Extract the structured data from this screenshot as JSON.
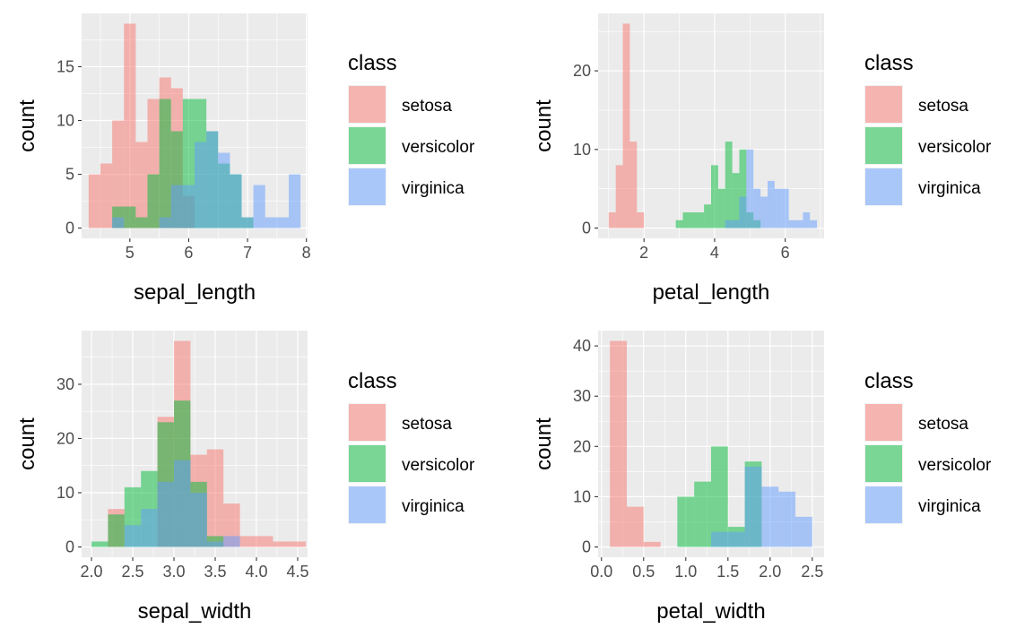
{
  "chart_data": [
    {
      "type": "histogram",
      "stacking": "overlay",
      "xlabel": "sepal_length",
      "ylabel": "count",
      "xlim": [
        4.18,
        8.02
      ],
      "ylim": [
        -0.95,
        19.95
      ],
      "x_ticks": [
        5,
        6,
        7,
        8
      ],
      "y_ticks": [
        0,
        5,
        10,
        15
      ],
      "legend_title": "class",
      "legend_position": "right",
      "grid": true,
      "series": [
        {
          "name": "setosa",
          "color": "#F8766D",
          "bins": [
            [
              4.3,
              4.5,
              5
            ],
            [
              4.5,
              4.7,
              6
            ],
            [
              4.7,
              4.9,
              10
            ],
            [
              4.9,
              5.1,
              19
            ],
            [
              5.1,
              5.3,
              8
            ],
            [
              5.3,
              5.5,
              12
            ],
            [
              5.5,
              5.7,
              14
            ],
            [
              5.7,
              5.9,
              13
            ],
            [
              5.9,
              6.1,
              3
            ]
          ]
        },
        {
          "name": "versicolor",
          "color": "#00BA38",
          "bins": [
            [
              4.7,
              4.9,
              2
            ],
            [
              4.9,
              5.1,
              2
            ],
            [
              5.1,
              5.3,
              1
            ],
            [
              5.3,
              5.5,
              5
            ],
            [
              5.5,
              5.7,
              12
            ],
            [
              5.7,
              5.9,
              9
            ],
            [
              5.9,
              6.1,
              12
            ],
            [
              6.1,
              6.3,
              12
            ],
            [
              6.3,
              6.5,
              9
            ],
            [
              6.5,
              6.7,
              6
            ],
            [
              6.7,
              6.9,
              5
            ],
            [
              6.9,
              7.1,
              1
            ]
          ]
        },
        {
          "name": "virginica",
          "color": "#619CFF",
          "bins": [
            [
              4.7,
              4.9,
              1
            ],
            [
              4.9,
              5.1,
              0
            ],
            [
              5.1,
              5.3,
              0
            ],
            [
              5.3,
              5.5,
              0
            ],
            [
              5.5,
              5.7,
              1
            ],
            [
              5.7,
              5.9,
              4
            ],
            [
              5.9,
              6.1,
              4
            ],
            [
              6.1,
              6.3,
              8
            ],
            [
              6.3,
              6.5,
              9
            ],
            [
              6.5,
              6.7,
              7
            ],
            [
              6.7,
              6.9,
              5
            ],
            [
              6.9,
              7.1,
              1
            ],
            [
              7.1,
              7.3,
              4
            ],
            [
              7.3,
              7.5,
              1
            ],
            [
              7.5,
              7.7,
              1
            ],
            [
              7.7,
              7.9,
              5
            ]
          ]
        }
      ]
    },
    {
      "type": "histogram",
      "stacking": "overlay",
      "xlabel": "petal_length",
      "ylabel": "count",
      "xlim": [
        0.7,
        7.1
      ],
      "ylim": [
        -1.3,
        27.3
      ],
      "x_ticks": [
        2,
        4,
        6
      ],
      "y_ticks": [
        0,
        10,
        20
      ],
      "legend_title": "class",
      "legend_position": "right",
      "grid": true,
      "series": [
        {
          "name": "setosa",
          "color": "#F8766D",
          "bins": [
            [
              1.0,
              1.2,
              2
            ],
            [
              1.2,
              1.4,
              8
            ],
            [
              1.4,
              1.6,
              26
            ],
            [
              1.6,
              1.8,
              11
            ],
            [
              1.8,
              2.0,
              2
            ]
          ]
        },
        {
          "name": "versicolor",
          "color": "#00BA38",
          "bins": [
            [
              2.9,
              3.1,
              1
            ],
            [
              3.1,
              3.3,
              2
            ],
            [
              3.3,
              3.5,
              2
            ],
            [
              3.5,
              3.7,
              2
            ],
            [
              3.7,
              3.9,
              3
            ],
            [
              3.9,
              4.1,
              8
            ],
            [
              4.1,
              4.3,
              5
            ],
            [
              4.3,
              4.5,
              11
            ],
            [
              4.5,
              4.7,
              7
            ],
            [
              4.7,
              4.9,
              10
            ],
            [
              4.9,
              5.1,
              2
            ],
            [
              5.1,
              5.3,
              1
            ]
          ]
        },
        {
          "name": "virginica",
          "color": "#619CFF",
          "bins": [
            [
              4.3,
              4.5,
              1
            ],
            [
              4.5,
              4.7,
              1
            ],
            [
              4.7,
              4.9,
              4
            ],
            [
              4.9,
              5.1,
              10
            ],
            [
              5.1,
              5.3,
              5
            ],
            [
              5.3,
              5.5,
              4
            ],
            [
              5.5,
              5.7,
              6
            ],
            [
              5.7,
              5.9,
              5
            ],
            [
              5.9,
              6.1,
              5
            ],
            [
              6.1,
              6.3,
              1
            ],
            [
              6.3,
              6.5,
              1
            ],
            [
              6.5,
              6.7,
              2
            ],
            [
              6.7,
              6.9,
              1
            ]
          ]
        }
      ]
    },
    {
      "type": "histogram",
      "stacking": "overlay",
      "xlabel": "sepal_width",
      "ylabel": "count",
      "xlim": [
        1.88,
        4.62
      ],
      "ylim": [
        -1.9,
        39.9
      ],
      "x_ticks": [
        "2.0",
        "2.5",
        "3.0",
        "3.5",
        "4.0",
        "4.5"
      ],
      "y_ticks": [
        0,
        10,
        20,
        30
      ],
      "legend_title": "class",
      "legend_position": "right",
      "grid": true,
      "series": [
        {
          "name": "setosa",
          "color": "#F8766D",
          "bins": [
            [
              2.2,
              2.4,
              7
            ],
            [
              2.8,
              3.0,
              24
            ],
            [
              3.0,
              3.2,
              38
            ],
            [
              3.2,
              3.4,
              17
            ],
            [
              3.4,
              3.6,
              18
            ],
            [
              3.6,
              3.8,
              8
            ],
            [
              3.8,
              4.0,
              2
            ],
            [
              4.0,
              4.2,
              2
            ],
            [
              4.2,
              4.4,
              1
            ],
            [
              4.4,
              4.6,
              1
            ]
          ]
        },
        {
          "name": "versicolor",
          "color": "#00BA38",
          "bins": [
            [
              2.0,
              2.2,
              1
            ],
            [
              2.2,
              2.4,
              6
            ],
            [
              2.4,
              2.6,
              11
            ],
            [
              2.6,
              2.8,
              14
            ],
            [
              2.8,
              3.0,
              23
            ],
            [
              3.0,
              3.2,
              27
            ],
            [
              3.2,
              3.4,
              12
            ],
            [
              3.4,
              3.6,
              2
            ]
          ]
        },
        {
          "name": "virginica",
          "color": "#619CFF",
          "bins": [
            [
              2.4,
              2.6,
              4
            ],
            [
              2.6,
              2.8,
              7
            ],
            [
              2.8,
              3.0,
              12
            ],
            [
              3.0,
              3.2,
              16
            ],
            [
              3.2,
              3.4,
              10
            ],
            [
              3.4,
              3.6,
              1
            ],
            [
              3.6,
              3.8,
              2
            ]
          ]
        }
      ]
    },
    {
      "type": "histogram",
      "stacking": "overlay",
      "xlabel": "petal_width",
      "ylabel": "count",
      "xlim": [
        -0.04,
        2.64
      ],
      "ylim": [
        -2.05,
        43.05
      ],
      "x_ticks": [
        "0.0",
        "0.5",
        "1.0",
        "1.5",
        "2.0",
        "2.5"
      ],
      "y_ticks": [
        0,
        10,
        20,
        30,
        40
      ],
      "legend_title": "class",
      "legend_position": "right",
      "grid": true,
      "series": [
        {
          "name": "setosa",
          "color": "#F8766D",
          "bins": [
            [
              0.1,
              0.3,
              41
            ],
            [
              0.3,
              0.5,
              8
            ],
            [
              0.5,
              0.7,
              1
            ]
          ]
        },
        {
          "name": "versicolor",
          "color": "#00BA38",
          "bins": [
            [
              0.9,
              1.1,
              10
            ],
            [
              1.1,
              1.3,
              13
            ],
            [
              1.3,
              1.5,
              20
            ],
            [
              1.5,
              1.7,
              4
            ],
            [
              1.7,
              1.9,
              17
            ]
          ]
        },
        {
          "name": "virginica",
          "color": "#619CFF",
          "bins": [
            [
              1.3,
              1.5,
              3
            ],
            [
              1.5,
              1.7,
              3
            ],
            [
              1.7,
              1.9,
              16
            ],
            [
              1.9,
              2.1,
              12
            ],
            [
              2.1,
              2.3,
              11
            ],
            [
              2.3,
              2.5,
              6
            ]
          ]
        }
      ]
    }
  ]
}
